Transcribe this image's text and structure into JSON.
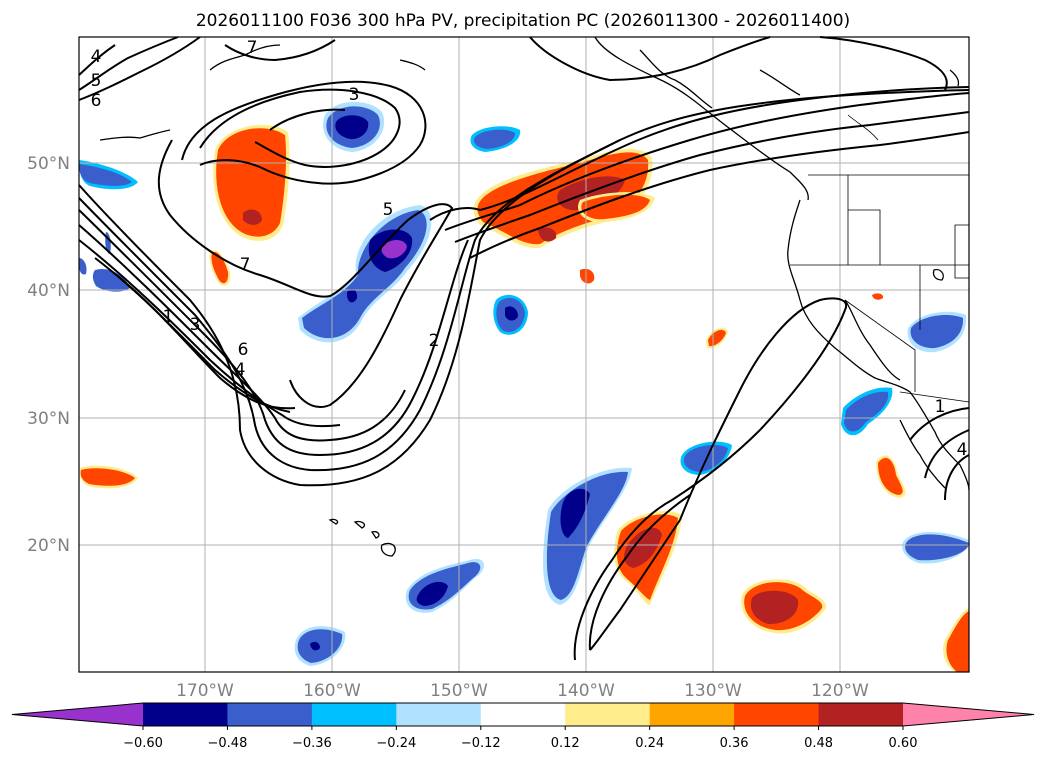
{
  "title": "2026011100 F036 300 hPa PV, precipitation PC (2026011300 - 2026011400)",
  "lat_labels": [
    "50°N",
    "40°N",
    "30°N",
    "20°N"
  ],
  "lon_labels": [
    "170°W",
    "160°W",
    "150°W",
    "140°W",
    "130°W",
    "120°W"
  ],
  "colorbar": {
    "tick_labels": [
      "−0.60",
      "−0.48",
      "−0.36",
      "−0.24",
      "−0.12",
      "0.12",
      "0.24",
      "0.36",
      "0.48",
      "0.60"
    ],
    "colors": [
      "#9932cc",
      "#00008b",
      "#3a5fcd",
      "#00bfff",
      "#b0e2ff",
      "#ffffff",
      "#ffec8b",
      "#ffa500",
      "#ff4500",
      "#b22222",
      "#ff82ab"
    ]
  },
  "pv_contour_labels": [
    "4",
    "5",
    "6",
    "7",
    "3",
    "5",
    "7",
    "1",
    "3",
    "6",
    "4",
    "2",
    "1",
    "4"
  ],
  "colors": {
    "neg_light": "#b0e2ff",
    "neg_mid": "#00bfff",
    "neg_blue": "#3a5fcd",
    "neg_dark": "#00008b",
    "neg_extreme": "#9932cc",
    "pos_light": "#ffec8b",
    "pos_mid": "#ffa500",
    "pos_red": "#ff4500",
    "pos_dark": "#b22222"
  }
}
